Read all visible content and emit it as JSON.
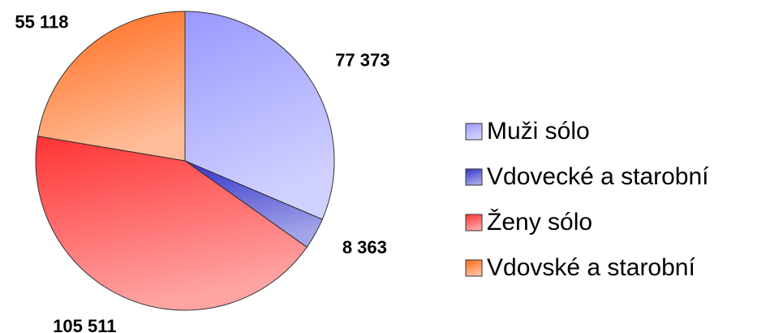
{
  "chart_data": {
    "type": "pie",
    "categories": [
      "Muži sólo",
      "Vdovecké a starobní",
      "Ženy sólo",
      "Vdovské a starobní"
    ],
    "values": [
      77373,
      8363,
      105511,
      55118
    ],
    "value_labels": [
      "77 373",
      "8 363",
      "105 511",
      "55 118"
    ],
    "colors": [
      "#9999ff",
      "#3333cc",
      "#ff3333",
      "#ff6a1a"
    ],
    "legend": "right"
  }
}
